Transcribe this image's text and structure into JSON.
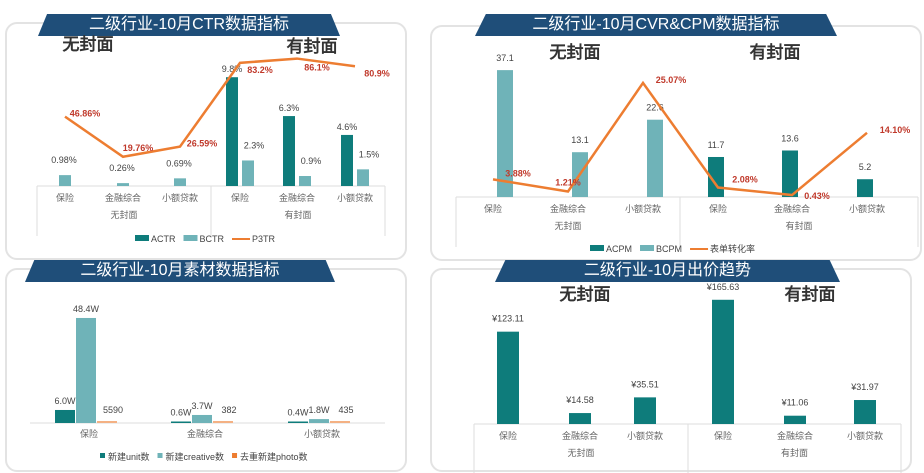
{
  "colors": {
    "dark_teal": "#0e7c7b",
    "light_teal": "#6fb3b8",
    "orange": "#ed7d31",
    "banner": "#1f4e79",
    "red_label": "#c0392b"
  },
  "chart_data": [
    {
      "type": "bar+line",
      "title": "二级行业-10月CTR数据指标",
      "groups": [
        "无封面",
        "有封面"
      ],
      "categories": [
        "保险",
        "金融综合",
        "小额贷款",
        "保险",
        "金融综合",
        "小额贷款"
      ],
      "series": [
        {
          "name": "ACTR",
          "type": "bar",
          "values": [
            null,
            null,
            null,
            9.8,
            6.3,
            4.6
          ],
          "labels": [
            "",
            "",
            "",
            "9.8%",
            "6.3%",
            "4.6%"
          ]
        },
        {
          "name": "BCTR",
          "type": "bar",
          "values": [
            0.98,
            0.26,
            0.69,
            2.3,
            0.9,
            1.5
          ],
          "labels": [
            "0.98%",
            "0.26%",
            "0.69%",
            "2.3%",
            "0.9%",
            "1.5%"
          ]
        },
        {
          "name": "P3TR",
          "type": "line",
          "values": [
            46.86,
            19.76,
            26.59,
            83.2,
            86.1,
            80.9
          ],
          "labels": [
            "46.86%",
            "19.76%",
            "26.59%",
            "83.2%",
            "86.1%",
            "80.9%"
          ]
        }
      ],
      "legend": "bottom"
    },
    {
      "type": "bar+line",
      "title": "二级行业-10月CVR&CPM数据指标",
      "groups": [
        "无封面",
        "有封面"
      ],
      "categories": [
        "保险",
        "金融综合",
        "小额贷款",
        "保险",
        "金融综合",
        "小额贷款"
      ],
      "series": [
        {
          "name": "ACPM",
          "type": "bar",
          "values": [
            null,
            null,
            null,
            11.7,
            13.6,
            5.2
          ],
          "labels": [
            "",
            "",
            "",
            "11.7",
            "13.6",
            "5.2"
          ]
        },
        {
          "name": "BCPM",
          "type": "bar",
          "values": [
            37.1,
            13.1,
            22.6,
            null,
            null,
            null
          ],
          "labels": [
            "37.1",
            "13.1",
            "22.6",
            "",
            "",
            ""
          ]
        },
        {
          "name": "表单转化率",
          "type": "line",
          "values": [
            3.88,
            1.21,
            25.07,
            2.08,
            0.43,
            14.1
          ],
          "labels": [
            "3.88%",
            "1.21%",
            "25.07%",
            "2.08%",
            "0.43%",
            "14.10%"
          ]
        }
      ],
      "legend": "bottom"
    },
    {
      "type": "bar",
      "title": "二级行业-10月素材数据指标",
      "categories": [
        "保险",
        "金融综合",
        "小额贷款"
      ],
      "series": [
        {
          "name": "新建unit数",
          "values": [
            6.0,
            0.6,
            0.4
          ],
          "labels": [
            "6.0W",
            "0.6W",
            "0.4W"
          ]
        },
        {
          "name": "新建creative数",
          "values": [
            48.4,
            3.7,
            1.8
          ],
          "labels": [
            "48.4W",
            "3.7W",
            "1.8W"
          ]
        },
        {
          "name": "去重新建photo数",
          "values": [
            5590,
            382,
            435
          ],
          "labels": [
            "5590",
            "382",
            "435"
          ]
        }
      ],
      "legend": "bottom"
    },
    {
      "type": "bar",
      "title": "二级行业-10月出价趋势",
      "groups": [
        "无封面",
        "有封面"
      ],
      "categories": [
        "保险",
        "金融综合",
        "小额贷款",
        "保险",
        "金融综合",
        "小额贷款"
      ],
      "series": [
        {
          "values": [
            123.11,
            14.58,
            35.51,
            165.63,
            11.06,
            31.97
          ],
          "labels": [
            "¥123.11",
            "¥14.58",
            "¥35.51",
            "¥165.63",
            "¥11.06",
            "¥31.97"
          ]
        }
      ]
    }
  ]
}
